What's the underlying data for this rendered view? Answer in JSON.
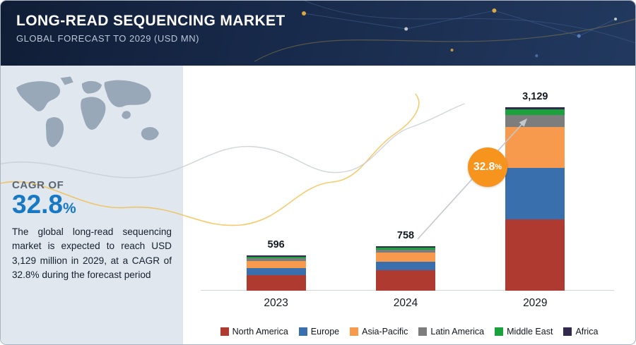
{
  "header": {
    "title": "LONG-READ SEQUENCING MARKET",
    "subtitle": "GLOBAL FORECAST TO 2029 (USD MN)"
  },
  "summary": {
    "cagr_label": "CAGR OF",
    "cagr_value": "32.8",
    "cagr_unit": "%",
    "description": "The global long-read sequencing market is expected to reach USD 3,129 million in 2029, at a CAGR of 32.8% during the forecast period"
  },
  "badge": {
    "value": "32.8",
    "unit": "%",
    "color": "#f7941d"
  },
  "chart_data": {
    "type": "bar",
    "stacked": true,
    "title": "Long-read Sequencing Market, Global Forecast to 2029 (USD MN)",
    "categories": [
      "2023",
      "2024",
      "2029"
    ],
    "totals": [
      "596",
      "758",
      "3,129"
    ],
    "ylim": [
      0,
      3300
    ],
    "grid": false,
    "legend_position": "bottom",
    "series": [
      {
        "name": "North America",
        "color": "#ae3a30",
        "values": [
          270,
          345,
          1220
        ]
      },
      {
        "name": "Europe",
        "color": "#3a6fae",
        "values": [
          120,
          150,
          880
        ]
      },
      {
        "name": "Asia-Pacific",
        "color": "#f79a4d",
        "values": [
          118,
          150,
          690
        ]
      },
      {
        "name": "Latin America",
        "color": "#7d7d7d",
        "values": [
          42,
          55,
          205
        ]
      },
      {
        "name": "Middle East",
        "color": "#1ca23c",
        "values": [
          30,
          38,
          98
        ]
      },
      {
        "name": "Africa",
        "color": "#312a4e",
        "values": [
          16,
          20,
          36
        ]
      }
    ]
  }
}
